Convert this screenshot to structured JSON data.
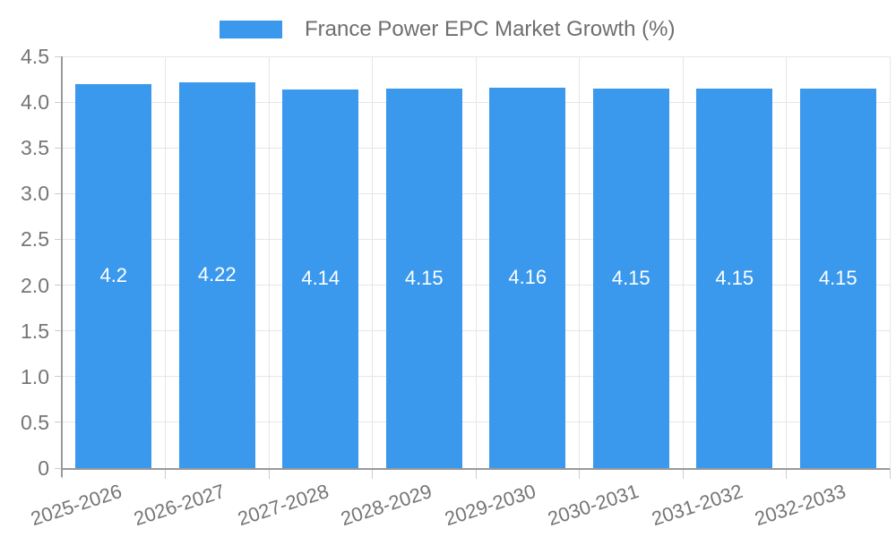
{
  "chart_data": {
    "type": "bar",
    "title": "France Power EPC Market Growth (%)",
    "series_name": "France Power EPC Market Growth (%)",
    "categories": [
      "2025-2026",
      "2026-2027",
      "2027-2028",
      "2028-2029",
      "2029-2030",
      "2030-2031",
      "2031-2032",
      "2032-2033"
    ],
    "values": [
      4.2,
      4.22,
      4.14,
      4.15,
      4.16,
      4.15,
      4.15,
      4.15
    ],
    "value_labels": [
      "4.2",
      "4.22",
      "4.14",
      "4.15",
      "4.16",
      "4.15",
      "4.15",
      "4.15"
    ],
    "xlabel": "",
    "ylabel": "",
    "ylim": [
      0,
      4.5
    ],
    "ytick_labels": [
      "0",
      "0.5",
      "1.0",
      "1.5",
      "2.0",
      "2.5",
      "3.0",
      "3.5",
      "4.0",
      "4.5"
    ],
    "grid": true,
    "legend_position": "top-center",
    "colors": {
      "bar": "#3A99EC",
      "value_label": "#FFFFFF",
      "axis_text": "#757575",
      "legend_text": "#6E6E6E",
      "gridline": "#E6E6E6",
      "axis_line": "#999999",
      "tick": "#CCCCCC",
      "background": "#FFFFFF"
    }
  }
}
